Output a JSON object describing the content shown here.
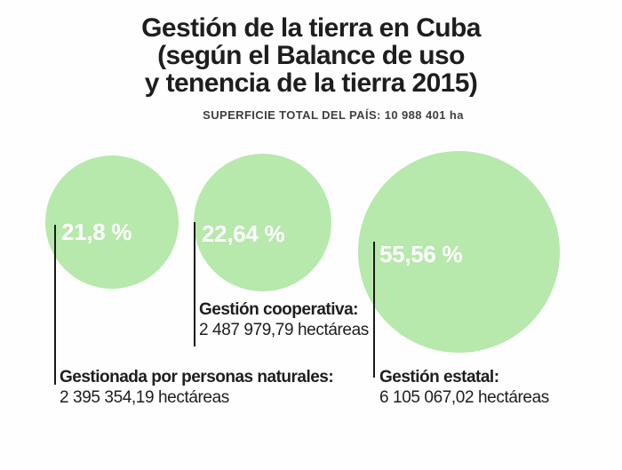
{
  "header": {
    "title_line1": "Gestión de la tierra en Cuba",
    "title_line2": "(según el Balance de uso",
    "title_line3": "y tenencia de la tierra 2015)",
    "subtitle": "SUPERFICIE TOTAL DEL PAÍS: 10 988 401 ha"
  },
  "bubbles": [
    {
      "percent_label": "21,8 %",
      "annot_title": "Gestionada por personas naturales:",
      "annot_value": "2 395 354,19 hectáreas"
    },
    {
      "percent_label": "22,64 %",
      "annot_title": "Gestión cooperativa:",
      "annot_value": "2 487 979,79 hectáreas"
    },
    {
      "percent_label": "55,56 %",
      "annot_title": "Gestión estatal:",
      "annot_value": "6 105 067,02 hectáreas"
    }
  ],
  "colors": {
    "bubble_green": "#b7e8ac",
    "text_dark": "#1f1d1e",
    "connector_black": "#1a1a1a",
    "percent_white": "#ffffff"
  },
  "chart_data": {
    "type": "pie",
    "variant": "proportional-area-circles",
    "title": "Gestión de la tierra en Cuba (según el Balance de uso y tenencia de la tierra 2015)",
    "subtitle": "SUPERFICIE TOTAL DEL PAÍS: 10 988 401 ha",
    "total_area_ha": 10988401,
    "categories": [
      "Gestionada por personas naturales",
      "Gestión cooperativa",
      "Gestión estatal"
    ],
    "values_percent": [
      21.8,
      22.64,
      55.56
    ],
    "values_hectares": [
      2395354.19,
      2487979.79,
      6105067.02
    ],
    "percent_labels": [
      "21,8 %",
      "22,64 %",
      "55,56 %"
    ],
    "legend_position": "below-circles",
    "grid": false
  }
}
